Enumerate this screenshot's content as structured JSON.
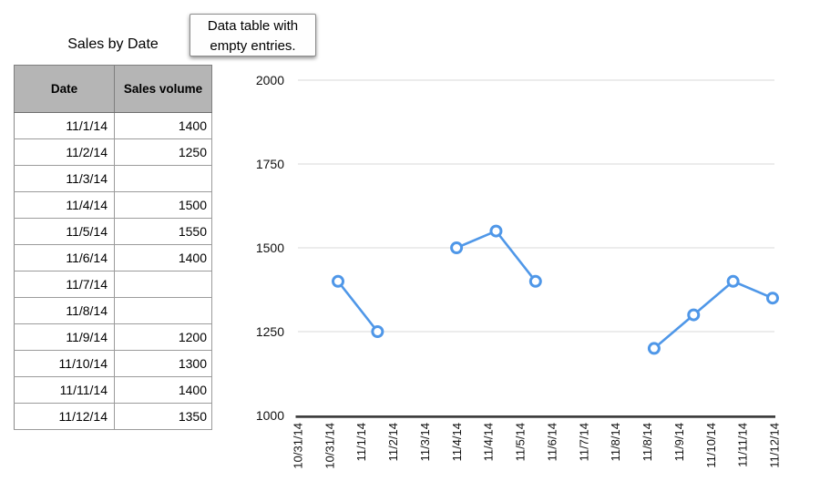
{
  "title": "Sales by Date",
  "callout": {
    "lines": [
      "Data table with",
      "empty entries."
    ]
  },
  "table": {
    "columns": [
      "Date",
      "Sales volume"
    ],
    "rows": [
      {
        "date": "11/1/14",
        "sales": "1400"
      },
      {
        "date": "11/2/14",
        "sales": "1250"
      },
      {
        "date": "11/3/14",
        "sales": ""
      },
      {
        "date": "11/4/14",
        "sales": "1500"
      },
      {
        "date": "11/5/14",
        "sales": "1550"
      },
      {
        "date": "11/6/14",
        "sales": "1400"
      },
      {
        "date": "11/7/14",
        "sales": ""
      },
      {
        "date": "11/8/14",
        "sales": ""
      },
      {
        "date": "11/9/14",
        "sales": "1200"
      },
      {
        "date": "11/10/14",
        "sales": "1300"
      },
      {
        "date": "11/11/14",
        "sales": "1400"
      },
      {
        "date": "11/12/14",
        "sales": "1350"
      }
    ]
  },
  "chart_data": {
    "type": "line",
    "title": "",
    "xlabel": "",
    "ylabel": "",
    "categories": [
      "11/1/14",
      "11/2/14",
      "11/3/14",
      "11/4/14",
      "11/5/14",
      "11/6/14",
      "11/7/14",
      "11/8/14",
      "11/9/14",
      "11/10/14",
      "11/11/14",
      "11/12/14"
    ],
    "values": [
      1400,
      1250,
      null,
      1500,
      1550,
      1400,
      null,
      null,
      1200,
      1300,
      1400,
      1350
    ],
    "x_tick_labels": [
      "10/31/14",
      "10/31/14",
      "11/1/14",
      "11/2/14",
      "11/3/14",
      "11/4/14",
      "11/4/14",
      "11/5/14",
      "11/6/14",
      "11/7/14",
      "11/8/14",
      "11/8/14",
      "11/9/14",
      "11/10/14",
      "11/11/14",
      "11/12/14"
    ],
    "y_ticks": [
      2000,
      1750,
      1500,
      1250,
      1000
    ],
    "ylim": [
      1000,
      2000
    ],
    "grid": "horizontal",
    "legend": "none",
    "marker": "open-circle",
    "gaps_note": "line breaks where table entries are empty"
  },
  "colors": {
    "line": "#4f97e8",
    "marker_fill": "#ffffff",
    "grid": "#d9d9d9",
    "axis": "#3f3f3f",
    "tick_text": "#111111",
    "header_bg": "#b5b5b5"
  }
}
